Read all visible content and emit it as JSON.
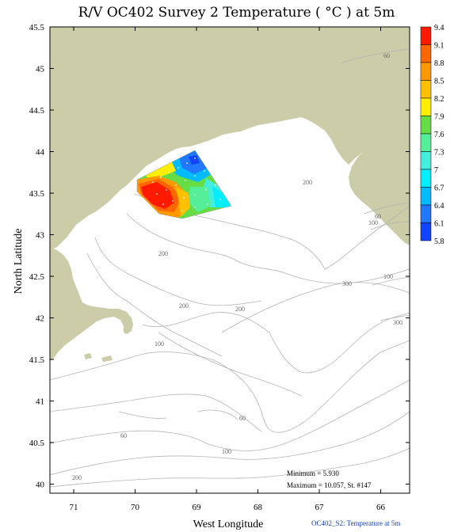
{
  "title": "R/V OC402 Survey 2 Temperature ( °C ) at 5m",
  "axes": {
    "xlabel": "West Longitude",
    "ylabel": "North Latitude",
    "x_ticks": [
      "71",
      "70",
      "69",
      "68",
      "67",
      "66"
    ],
    "y_ticks": [
      "45.5",
      "45",
      "44.5",
      "44",
      "43.5",
      "43",
      "42.5",
      "42",
      "41.5",
      "41",
      "40.5",
      "40"
    ]
  },
  "colorbar": {
    "labels": [
      "9.4",
      "9.1",
      "8.8",
      "8.5",
      "8.2",
      "7.9",
      "7.6",
      "7.3",
      "7",
      "6.7",
      "6.4",
      "6.1",
      "5.8"
    ],
    "colors": [
      "#ff1a00",
      "#ff6600",
      "#ff9900",
      "#ffc000",
      "#ffee00",
      "#66dd44",
      "#55ee99",
      "#44eedd",
      "#00eeff",
      "#00bbff",
      "#2277ff",
      "#1144ff",
      "#0022ff"
    ]
  },
  "contour_labels": [
    "60",
    "200",
    "60",
    "100",
    "200",
    "200",
    "100",
    "300",
    "300",
    "200",
    "100",
    "60",
    "100",
    "60",
    "200"
  ],
  "stats": {
    "minimum": "Minimum = 5.930",
    "maximum": "Maximum = 10.057, St. #147"
  },
  "footer": "OC402_S2: Temperature at 5m",
  "colors": {
    "land": "#cccca8",
    "contour": "#b4b4b4",
    "footer_text": "#1a3fb4"
  }
}
